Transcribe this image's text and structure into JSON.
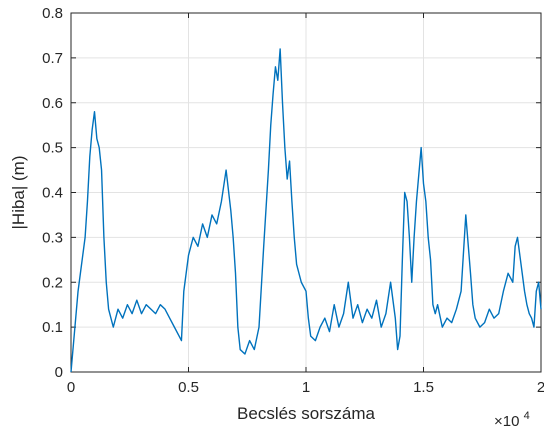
{
  "chart_data": {
    "type": "line",
    "title": "",
    "xlabel": "Becslés sorszáma",
    "ylabel": "|Hiba| (m)",
    "x_exponent_label": "×10",
    "x_exponent_power": "4",
    "xlim": [
      0,
      2
    ],
    "ylim": [
      0,
      0.8
    ],
    "x_scale_factor": 10000,
    "xticks": [
      0,
      0.5,
      1,
      1.5,
      2
    ],
    "xtick_labels": [
      "0",
      "0.5",
      "1",
      "1.5",
      "2"
    ],
    "yticks": [
      0,
      0.1,
      0.2,
      0.3,
      0.4,
      0.5,
      0.6,
      0.7,
      0.8
    ],
    "ytick_labels": [
      "0",
      "0.1",
      "0.2",
      "0.3",
      "0.4",
      "0.5",
      "0.6",
      "0.7",
      "0.8"
    ],
    "grid": true,
    "legend": "none",
    "series": [
      {
        "color": "#0072BD",
        "points": [
          [
            0,
            0.0
          ],
          [
            0.01,
            0.06
          ],
          [
            0.02,
            0.12
          ],
          [
            0.03,
            0.18
          ],
          [
            0.04,
            0.22
          ],
          [
            0.05,
            0.26
          ],
          [
            0.06,
            0.3
          ],
          [
            0.07,
            0.38
          ],
          [
            0.08,
            0.48
          ],
          [
            0.09,
            0.54
          ],
          [
            0.1,
            0.58
          ],
          [
            0.11,
            0.52
          ],
          [
            0.12,
            0.5
          ],
          [
            0.13,
            0.45
          ],
          [
            0.14,
            0.3
          ],
          [
            0.15,
            0.2
          ],
          [
            0.16,
            0.14
          ],
          [
            0.17,
            0.12
          ],
          [
            0.18,
            0.1
          ],
          [
            0.2,
            0.14
          ],
          [
            0.22,
            0.12
          ],
          [
            0.24,
            0.15
          ],
          [
            0.26,
            0.13
          ],
          [
            0.28,
            0.16
          ],
          [
            0.3,
            0.13
          ],
          [
            0.32,
            0.15
          ],
          [
            0.34,
            0.14
          ],
          [
            0.36,
            0.13
          ],
          [
            0.38,
            0.15
          ],
          [
            0.4,
            0.14
          ],
          [
            0.42,
            0.12
          ],
          [
            0.44,
            0.1
          ],
          [
            0.46,
            0.08
          ],
          [
            0.47,
            0.07
          ],
          [
            0.48,
            0.18
          ],
          [
            0.5,
            0.26
          ],
          [
            0.52,
            0.3
          ],
          [
            0.54,
            0.28
          ],
          [
            0.56,
            0.33
          ],
          [
            0.58,
            0.3
          ],
          [
            0.6,
            0.35
          ],
          [
            0.62,
            0.33
          ],
          [
            0.64,
            0.38
          ],
          [
            0.66,
            0.45
          ],
          [
            0.68,
            0.36
          ],
          [
            0.69,
            0.3
          ],
          [
            0.7,
            0.22
          ],
          [
            0.71,
            0.1
          ],
          [
            0.72,
            0.05
          ],
          [
            0.74,
            0.04
          ],
          [
            0.76,
            0.07
          ],
          [
            0.78,
            0.05
          ],
          [
            0.8,
            0.1
          ],
          [
            0.82,
            0.28
          ],
          [
            0.84,
            0.45
          ],
          [
            0.85,
            0.55
          ],
          [
            0.86,
            0.62
          ],
          [
            0.87,
            0.68
          ],
          [
            0.88,
            0.65
          ],
          [
            0.89,
            0.72
          ],
          [
            0.9,
            0.6
          ],
          [
            0.91,
            0.5
          ],
          [
            0.92,
            0.43
          ],
          [
            0.93,
            0.47
          ],
          [
            0.94,
            0.38
          ],
          [
            0.95,
            0.3
          ],
          [
            0.96,
            0.24
          ],
          [
            0.98,
            0.2
          ],
          [
            1.0,
            0.18
          ],
          [
            1.01,
            0.12
          ],
          [
            1.02,
            0.08
          ],
          [
            1.04,
            0.07
          ],
          [
            1.06,
            0.1
          ],
          [
            1.08,
            0.12
          ],
          [
            1.1,
            0.09
          ],
          [
            1.12,
            0.15
          ],
          [
            1.14,
            0.1
          ],
          [
            1.16,
            0.13
          ],
          [
            1.18,
            0.2
          ],
          [
            1.2,
            0.12
          ],
          [
            1.22,
            0.15
          ],
          [
            1.24,
            0.11
          ],
          [
            1.26,
            0.14
          ],
          [
            1.28,
            0.12
          ],
          [
            1.3,
            0.16
          ],
          [
            1.32,
            0.1
          ],
          [
            1.34,
            0.13
          ],
          [
            1.36,
            0.2
          ],
          [
            1.38,
            0.12
          ],
          [
            1.39,
            0.05
          ],
          [
            1.4,
            0.08
          ],
          [
            1.41,
            0.25
          ],
          [
            1.42,
            0.4
          ],
          [
            1.43,
            0.38
          ],
          [
            1.44,
            0.3
          ],
          [
            1.45,
            0.2
          ],
          [
            1.46,
            0.3
          ],
          [
            1.47,
            0.38
          ],
          [
            1.48,
            0.44
          ],
          [
            1.49,
            0.5
          ],
          [
            1.5,
            0.42
          ],
          [
            1.51,
            0.38
          ],
          [
            1.52,
            0.3
          ],
          [
            1.53,
            0.25
          ],
          [
            1.54,
            0.15
          ],
          [
            1.55,
            0.13
          ],
          [
            1.56,
            0.15
          ],
          [
            1.58,
            0.1
          ],
          [
            1.6,
            0.12
          ],
          [
            1.62,
            0.11
          ],
          [
            1.64,
            0.14
          ],
          [
            1.66,
            0.18
          ],
          [
            1.68,
            0.35
          ],
          [
            1.7,
            0.22
          ],
          [
            1.71,
            0.15
          ],
          [
            1.72,
            0.12
          ],
          [
            1.74,
            0.1
          ],
          [
            1.76,
            0.11
          ],
          [
            1.78,
            0.14
          ],
          [
            1.8,
            0.12
          ],
          [
            1.82,
            0.13
          ],
          [
            1.84,
            0.18
          ],
          [
            1.86,
            0.22
          ],
          [
            1.88,
            0.2
          ],
          [
            1.89,
            0.28
          ],
          [
            1.9,
            0.3
          ],
          [
            1.91,
            0.26
          ],
          [
            1.92,
            0.22
          ],
          [
            1.93,
            0.18
          ],
          [
            1.94,
            0.15
          ],
          [
            1.95,
            0.13
          ],
          [
            1.96,
            0.12
          ],
          [
            1.97,
            0.1
          ],
          [
            1.98,
            0.18
          ],
          [
            1.99,
            0.2
          ],
          [
            2.0,
            0.14
          ]
        ]
      }
    ]
  }
}
